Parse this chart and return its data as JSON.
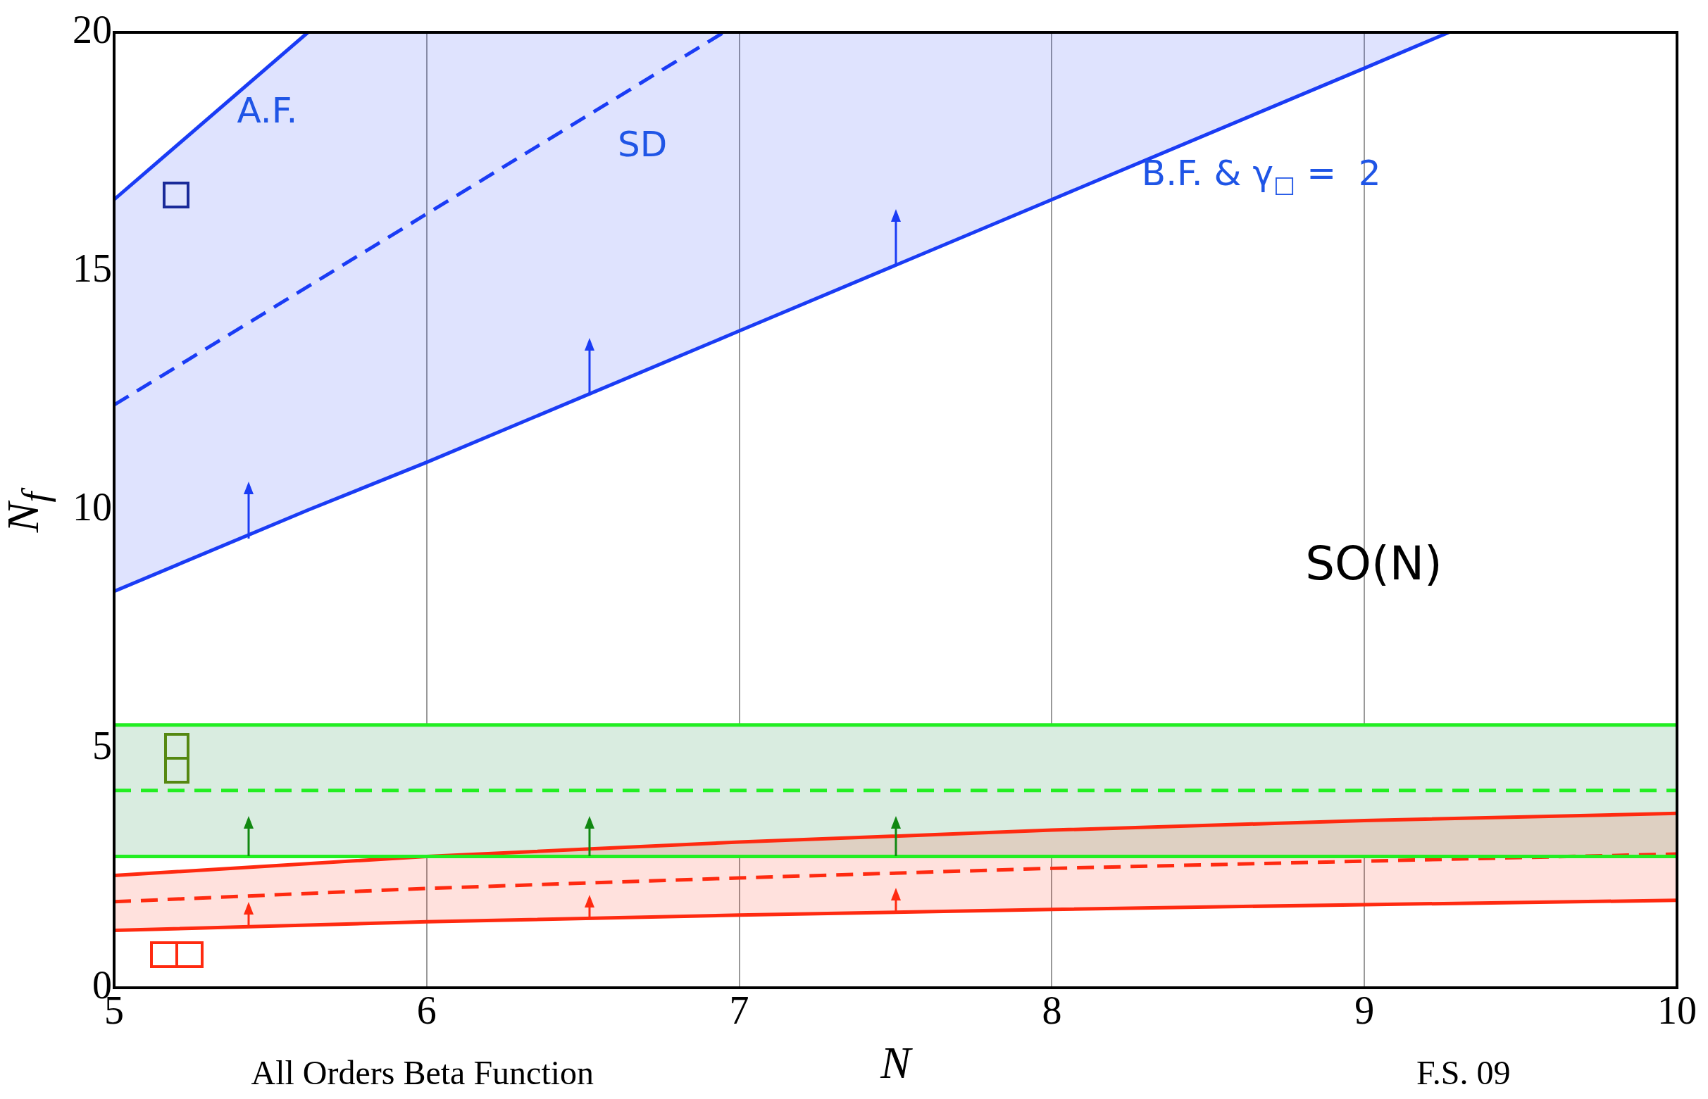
{
  "chart_data": {
    "type": "line",
    "title": "SO(N)",
    "xlabel": "N",
    "ylabel": "N$_{f}$",
    "xlim": [
      5,
      10
    ],
    "ylim": [
      0,
      20
    ],
    "xticks": [
      5,
      6,
      7,
      8,
      9,
      10
    ],
    "yticks": [
      0,
      5,
      10,
      15,
      20
    ],
    "grid": "x",
    "marker": "none",
    "series": [
      {
        "color": "#1a3cf5",
        "x": [
          5,
          5.62
        ],
        "values": [
          16.5,
          20
        ]
      },
      {
        "color": "#1a3cf5",
        "line_style": "dashed",
        "x": [
          5,
          6,
          6.95
        ],
        "values": [
          12.2,
          16.2,
          20
        ]
      },
      {
        "color": "#1a3cf5",
        "x": [
          5,
          5.62,
          6,
          7,
          8,
          9,
          9.27
        ],
        "values": [
          8.3,
          10.0,
          11.0,
          13.75,
          16.5,
          19.25,
          20
        ],
        "lower": [
          8.3,
          10.0,
          11.0,
          13.75,
          16.5,
          19.25,
          20
        ],
        "upper": [
          16.5,
          20,
          20,
          20,
          20,
          20,
          20
        ]
      },
      {
        "color": "#ff2a10",
        "x": [
          5,
          6,
          7,
          8,
          9,
          10
        ],
        "values": [
          2.35,
          2.75,
          3.05,
          3.3,
          3.5,
          3.65
        ]
      },
      {
        "color": "#ff2a10",
        "line_style": "dashed",
        "x": [
          5,
          6,
          7,
          8,
          9,
          10
        ],
        "values": [
          1.8,
          2.08,
          2.3,
          2.5,
          2.65,
          2.8
        ],
        "lower": [
          1.2,
          1.38,
          1.52,
          1.64,
          1.74,
          1.83
        ],
        "upper": [
          2.35,
          2.75,
          3.05,
          3.3,
          3.5,
          3.65
        ]
      },
      {
        "color": "#ff2a10",
        "x": [
          5,
          6,
          7,
          8,
          9,
          10
        ],
        "values": [
          1.2,
          1.38,
          1.52,
          1.64,
          1.74,
          1.83
        ]
      }
    ],
    "bands": [
      {
        "axis": "y",
        "from": 2.75,
        "to": 5.5,
        "color": "#d9ece0"
      }
    ],
    "ref_lines": [
      {
        "axis": "y",
        "value": 5.5,
        "color": "#22ee22"
      },
      {
        "axis": "y",
        "value": 4.13,
        "color": "#22ee22",
        "line_style": "dashed"
      },
      {
        "axis": "y",
        "value": 2.75,
        "color": "#22ee22"
      }
    ],
    "annotations": [
      "A.F.",
      "SD",
      "B.F. & γ$_{□}$ =  2",
      "All Orders Beta Function",
      "F.S. 09"
    ]
  }
}
